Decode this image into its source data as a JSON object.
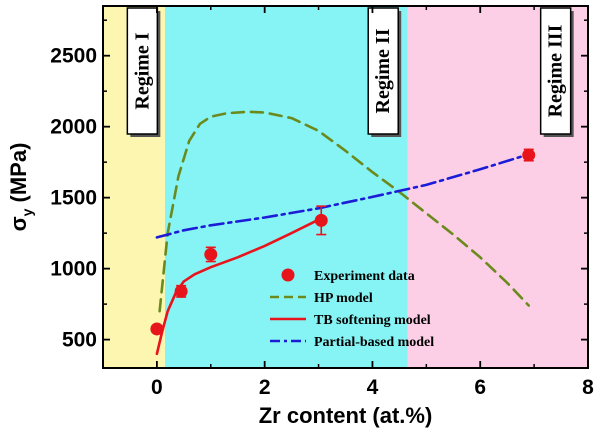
{
  "chart_data": {
    "type": "line",
    "xlabel": "Zr content (at.%)",
    "ylabel_main": "σ",
    "ylabel_sub": "y",
    "ylabel_rest": " (MPa)",
    "xlim": [
      -1,
      8
    ],
    "ylim": [
      300,
      2850
    ],
    "xticks": [
      0,
      2,
      4,
      6,
      8
    ],
    "yticks": [
      500,
      1000,
      1500,
      2000,
      2500
    ],
    "regions": [
      {
        "name": "Regime I",
        "x0": -1,
        "x1": 0.15,
        "color": "#fdf6b0"
      },
      {
        "name": "Regime II",
        "x0": 0.15,
        "x1": 4.65,
        "color": "#86f4f4"
      },
      {
        "name": "Regime III",
        "x0": 4.65,
        "x1": 8,
        "color": "#fdcfe6"
      }
    ],
    "series": [
      {
        "name": "Experiment data",
        "style": "markers",
        "color": "#e8141c",
        "points": [
          {
            "x": 0,
            "y": 575,
            "err": 25
          },
          {
            "x": 0.45,
            "y": 840,
            "err": 40
          },
          {
            "x": 1.0,
            "y": 1100,
            "err": 50
          },
          {
            "x": 3.05,
            "y": 1340,
            "err": 100
          },
          {
            "x": 6.9,
            "y": 1800,
            "err": 40
          }
        ]
      },
      {
        "name": "HP model",
        "style": "dashed",
        "color": "#6b8a1e",
        "x": [
          0.05,
          0.2,
          0.4,
          0.6,
          0.8,
          1.0,
          1.3,
          1.7,
          2.0,
          2.5,
          3.0,
          3.5,
          4.0,
          4.5,
          5.0,
          5.5,
          6.0,
          6.5,
          6.9
        ],
        "y": [
          700,
          1250,
          1650,
          1900,
          2020,
          2070,
          2095,
          2105,
          2100,
          2060,
          1970,
          1830,
          1680,
          1540,
          1390,
          1240,
          1080,
          900,
          740
        ]
      },
      {
        "name": "TB softening model",
        "style": "solid",
        "color": "#e8141c",
        "x": [
          0,
          0.1,
          0.2,
          0.35,
          0.5,
          0.7,
          1.0,
          1.5,
          2.0,
          2.5,
          3.0
        ],
        "y": [
          400,
          560,
          700,
          830,
          910,
          960,
          1010,
          1080,
          1160,
          1250,
          1345
        ]
      },
      {
        "name": "Partial-based model",
        "style": "dashdot",
        "color": "#1c1cd8",
        "x": [
          0,
          0.5,
          1,
          2,
          3,
          4,
          5,
          6,
          6.9
        ],
        "y": [
          1220,
          1270,
          1305,
          1360,
          1425,
          1505,
          1590,
          1700,
          1805
        ]
      }
    ],
    "legend_position": "lower-right"
  }
}
